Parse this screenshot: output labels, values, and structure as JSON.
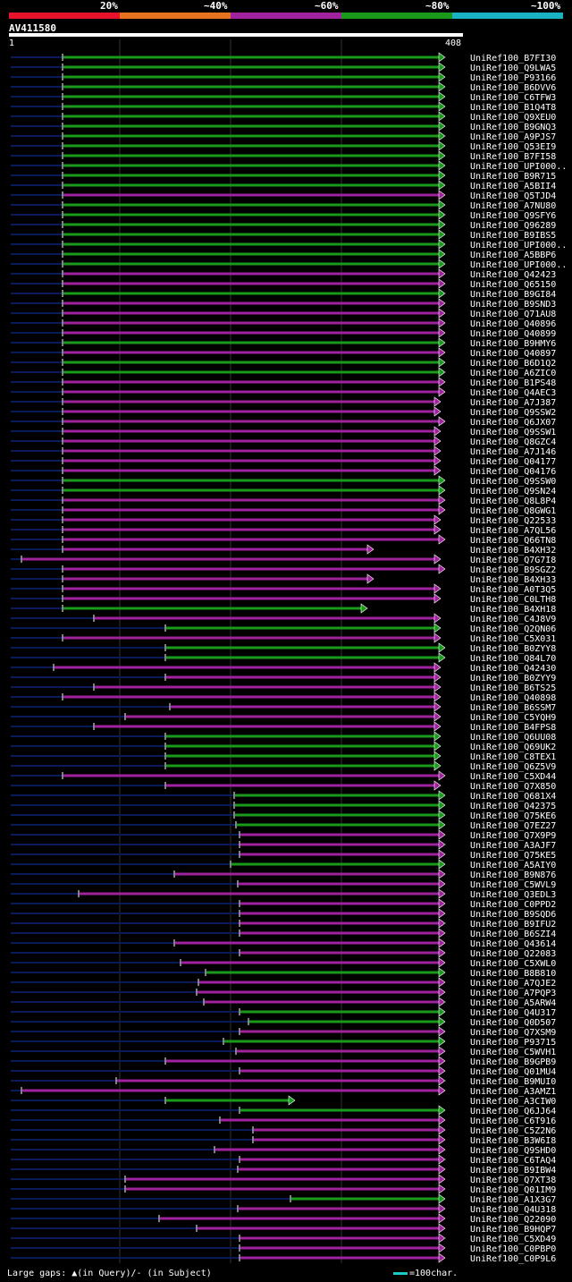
{
  "scale": {
    "marks": [
      "20%",
      "~40%",
      "~60%",
      "~80%",
      "~100%"
    ],
    "colors": [
      "#e8122d",
      "#e8731e",
      "#a0229e",
      "#1a9a1a",
      "#19b2c2"
    ]
  },
  "query": {
    "name": "AV411580",
    "start": "1",
    "end": "408"
  },
  "legend": {
    "gaps": "Large gaps: ▲(in Query)/- (in Subject)",
    "scale": "=100char."
  },
  "hits": [
    {
      "label": "UniRef100_B7FI30",
      "start": 70,
      "end": 498,
      "color": "green",
      "arrow": true
    },
    {
      "label": "UniRef100_Q9LWA5",
      "start": 70,
      "end": 498,
      "color": "green",
      "arrow": true
    },
    {
      "label": "UniRef100_P93166",
      "start": 70,
      "end": 498,
      "color": "green",
      "arrow": true
    },
    {
      "label": "UniRef100_B6DVV6",
      "start": 70,
      "end": 498,
      "color": "green",
      "arrow": true
    },
    {
      "label": "UniRef100_C6TFW3",
      "start": 70,
      "end": 498,
      "color": "green",
      "arrow": true
    },
    {
      "label": "UniRef100_B1Q4T8",
      "start": 70,
      "end": 498,
      "color": "green",
      "arrow": true
    },
    {
      "label": "UniRef100_Q9XEU0",
      "start": 70,
      "end": 498,
      "color": "green",
      "arrow": true
    },
    {
      "label": "UniRef100_B9GNQ3",
      "start": 70,
      "end": 498,
      "color": "green",
      "arrow": true
    },
    {
      "label": "UniRef100_A9PJS7",
      "start": 70,
      "end": 498,
      "color": "green",
      "arrow": true
    },
    {
      "label": "UniRef100_Q53EI9",
      "start": 70,
      "end": 498,
      "color": "green",
      "arrow": true
    },
    {
      "label": "UniRef100_B7FI58",
      "start": 70,
      "end": 498,
      "color": "green",
      "arrow": true
    },
    {
      "label": "UniRef100_UPI000..",
      "start": 70,
      "end": 498,
      "color": "green",
      "arrow": true
    },
    {
      "label": "UniRef100_B9R715",
      "start": 70,
      "end": 498,
      "color": "green",
      "arrow": true
    },
    {
      "label": "UniRef100_A5BII4",
      "start": 70,
      "end": 498,
      "color": "green",
      "arrow": true
    },
    {
      "label": "UniRef100_Q5TJD4",
      "start": 70,
      "end": 498,
      "color": "purple",
      "arrow": true
    },
    {
      "label": "UniRef100_A7NU80",
      "start": 70,
      "end": 498,
      "color": "green",
      "arrow": true
    },
    {
      "label": "UniRef100_Q9SFY6",
      "start": 70,
      "end": 498,
      "color": "green",
      "arrow": true
    },
    {
      "label": "UniRef100_Q96289",
      "start": 70,
      "end": 498,
      "color": "green",
      "arrow": true
    },
    {
      "label": "UniRef100_B9IBS5",
      "start": 70,
      "end": 498,
      "color": "green",
      "arrow": true
    },
    {
      "label": "UniRef100_UPI000..",
      "start": 70,
      "end": 498,
      "color": "green",
      "arrow": true
    },
    {
      "label": "UniRef100_A5BBP6",
      "start": 70,
      "end": 498,
      "color": "green",
      "arrow": true
    },
    {
      "label": "UniRef100_UPI000..",
      "start": 70,
      "end": 498,
      "color": "green",
      "arrow": true
    },
    {
      "label": "UniRef100_Q42423",
      "start": 70,
      "end": 498,
      "color": "purple",
      "arrow": true
    },
    {
      "label": "UniRef100_Q65150",
      "start": 70,
      "end": 498,
      "color": "purple",
      "arrow": true
    },
    {
      "label": "UniRef100_B9GI84",
      "start": 70,
      "end": 498,
      "color": "green",
      "arrow": true
    },
    {
      "label": "UniRef100_B9SND3",
      "start": 70,
      "end": 498,
      "color": "purple",
      "arrow": true
    },
    {
      "label": "UniRef100_Q71AU8",
      "start": 70,
      "end": 498,
      "color": "purple",
      "arrow": true
    },
    {
      "label": "UniRef100_Q40896",
      "start": 70,
      "end": 498,
      "color": "purple",
      "arrow": true
    },
    {
      "label": "UniRef100_Q40899",
      "start": 70,
      "end": 498,
      "color": "purple",
      "arrow": true
    },
    {
      "label": "UniRef100_B9HMY6",
      "start": 70,
      "end": 498,
      "color": "green",
      "arrow": true
    },
    {
      "label": "UniRef100_Q40897",
      "start": 70,
      "end": 498,
      "color": "purple",
      "arrow": true
    },
    {
      "label": "UniRef100_B6D1Q2",
      "start": 70,
      "end": 498,
      "color": "green",
      "arrow": true
    },
    {
      "label": "UniRef100_A6ZIC0",
      "start": 70,
      "end": 498,
      "color": "green",
      "arrow": true
    },
    {
      "label": "UniRef100_B1PS48",
      "start": 70,
      "end": 498,
      "color": "purple",
      "arrow": true
    },
    {
      "label": "UniRef100_Q4AEC3",
      "start": 70,
      "end": 498,
      "color": "purple",
      "arrow": true
    },
    {
      "label": "UniRef100_A7J387",
      "start": 70,
      "end": 493,
      "color": "purple",
      "arrow": true
    },
    {
      "label": "UniRef100_Q9SSW2",
      "start": 70,
      "end": 493,
      "color": "purple",
      "arrow": true
    },
    {
      "label": "UniRef100_Q6JX07",
      "start": 70,
      "end": 498,
      "color": "purple",
      "arrow": true
    },
    {
      "label": "UniRef100_Q9SSW1",
      "start": 70,
      "end": 493,
      "color": "purple",
      "arrow": true
    },
    {
      "label": "UniRef100_Q8GZC4",
      "start": 70,
      "end": 493,
      "color": "purple",
      "arrow": true
    },
    {
      "label": "UniRef100_A7J146",
      "start": 70,
      "end": 493,
      "color": "purple",
      "arrow": true
    },
    {
      "label": "UniRef100_Q04177",
      "start": 70,
      "end": 493,
      "color": "purple",
      "arrow": true
    },
    {
      "label": "UniRef100_Q04176",
      "start": 70,
      "end": 493,
      "color": "purple",
      "arrow": true
    },
    {
      "label": "UniRef100_Q9SSW0",
      "start": 70,
      "end": 498,
      "color": "green",
      "arrow": true
    },
    {
      "label": "UniRef100_Q9SN24",
      "start": 70,
      "end": 498,
      "color": "green",
      "arrow": true
    },
    {
      "label": "UniRef100_Q8L8P4",
      "start": 70,
      "end": 498,
      "color": "purple",
      "arrow": true
    },
    {
      "label": "UniRef100_Q8GWG1",
      "start": 70,
      "end": 498,
      "color": "purple",
      "arrow": true
    },
    {
      "label": "UniRef100_Q22533",
      "start": 70,
      "end": 493,
      "color": "purple",
      "arrow": true
    },
    {
      "label": "UniRef100_A7QL56",
      "start": 70,
      "end": 493,
      "color": "purple",
      "arrow": true
    },
    {
      "label": "UniRef100_Q66TN8",
      "start": 70,
      "end": 498,
      "color": "purple",
      "arrow": true
    },
    {
      "label": "UniRef100_B4XH32",
      "start": 70,
      "end": 418,
      "color": "purple",
      "arrow": true
    },
    {
      "label": "UniRef100_Q7G7I8",
      "start": 24,
      "end": 493,
      "color": "purple",
      "arrow": true
    },
    {
      "label": "UniRef100_B9SGZ2",
      "start": 70,
      "end": 498,
      "color": "purple",
      "arrow": true
    },
    {
      "label": "UniRef100_B4XH33",
      "start": 70,
      "end": 418,
      "color": "purple",
      "arrow": true
    },
    {
      "label": "UniRef100_A0T3Q5",
      "start": 70,
      "end": 493,
      "color": "purple",
      "arrow": true
    },
    {
      "label": "UniRef100_C0LTH8",
      "start": 70,
      "end": 493,
      "color": "purple",
      "arrow": true
    },
    {
      "label": "UniRef100_B4XH18",
      "start": 70,
      "end": 411,
      "color": "green",
      "arrow": true
    },
    {
      "label": "UniRef100_C4J8V9",
      "start": 105,
      "end": 493,
      "color": "purple",
      "arrow": true
    },
    {
      "label": "UniRef100_Q2QN06",
      "start": 185,
      "end": 493,
      "color": "green",
      "arrow": true
    },
    {
      "label": "UniRef100_C5X031",
      "start": 70,
      "end": 493,
      "color": "purple",
      "arrow": true
    },
    {
      "label": "UniRef100_B0ZYY8",
      "start": 185,
      "end": 498,
      "color": "green",
      "arrow": true
    },
    {
      "label": "UniRef100_Q84L70",
      "start": 185,
      "end": 498,
      "color": "green",
      "arrow": true
    },
    {
      "label": "UniRef100_Q42430",
      "start": 60,
      "end": 493,
      "color": "purple",
      "arrow": true
    },
    {
      "label": "UniRef100_B0ZYY9",
      "start": 185,
      "end": 493,
      "color": "purple",
      "arrow": true
    },
    {
      "label": "UniRef100_B6TS25",
      "start": 105,
      "end": 493,
      "color": "purple",
      "arrow": true
    },
    {
      "label": "UniRef100_Q40898",
      "start": 70,
      "end": 493,
      "color": "purple",
      "arrow": true
    },
    {
      "label": "UniRef100_B6SSM7",
      "start": 190,
      "end": 493,
      "color": "purple",
      "arrow": true
    },
    {
      "label": "UniRef100_C5YQH9",
      "start": 140,
      "end": 493,
      "color": "purple",
      "arrow": true
    },
    {
      "label": "UniRef100_B4FPS8",
      "start": 105,
      "end": 493,
      "color": "purple",
      "arrow": true
    },
    {
      "label": "UniRef100_Q6UU08",
      "start": 185,
      "end": 493,
      "color": "green",
      "arrow": true
    },
    {
      "label": "UniRef100_Q69UK2",
      "start": 185,
      "end": 493,
      "color": "green",
      "arrow": true
    },
    {
      "label": "UniRef100_C8TEX1",
      "start": 185,
      "end": 493,
      "color": "green",
      "arrow": true
    },
    {
      "label": "UniRef100_Q6Z5V9",
      "start": 185,
      "end": 493,
      "color": "green",
      "arrow": true
    },
    {
      "label": "UniRef100_C5XD44",
      "start": 70,
      "end": 498,
      "color": "purple",
      "arrow": true
    },
    {
      "label": "UniRef100_Q7X850",
      "start": 185,
      "end": 493,
      "color": "purple",
      "arrow": true
    },
    {
      "label": "UniRef100_Q681X4",
      "start": 262,
      "end": 498,
      "color": "green",
      "arrow": true
    },
    {
      "label": "UniRef100_Q42375",
      "start": 262,
      "end": 498,
      "color": "green",
      "arrow": true
    },
    {
      "label": "UniRef100_Q75KE6",
      "start": 262,
      "end": 498,
      "color": "green",
      "arrow": true
    },
    {
      "label": "UniRef100_Q7EZ27",
      "start": 264,
      "end": 498,
      "color": "green",
      "arrow": true
    },
    {
      "label": "UniRef100_Q7X9P9",
      "start": 268,
      "end": 498,
      "color": "purple",
      "arrow": true
    },
    {
      "label": "UniRef100_A3AJF7",
      "start": 268,
      "end": 498,
      "color": "purple",
      "arrow": true
    },
    {
      "label": "UniRef100_Q75KE5",
      "start": 268,
      "end": 498,
      "color": "purple",
      "arrow": true
    },
    {
      "label": "UniRef100_A5AIY0",
      "start": 258,
      "end": 498,
      "color": "green",
      "arrow": true
    },
    {
      "label": "UniRef100_B9N876",
      "start": 195,
      "end": 498,
      "color": "purple",
      "arrow": true
    },
    {
      "label": "UniRef100_C5WVL9",
      "start": 266,
      "end": 498,
      "color": "purple",
      "arrow": true
    },
    {
      "label": "UniRef100_Q3EDL3",
      "start": 88,
      "end": 498,
      "color": "purple",
      "arrow": true
    },
    {
      "label": "UniRef100_C0PPD2",
      "start": 268,
      "end": 498,
      "color": "purple",
      "arrow": true
    },
    {
      "label": "UniRef100_B9SQD6",
      "start": 268,
      "end": 498,
      "color": "purple",
      "arrow": true
    },
    {
      "label": "UniRef100_B9IFU2",
      "start": 268,
      "end": 498,
      "color": "purple",
      "arrow": true
    },
    {
      "label": "UniRef100_B6SZI4",
      "start": 268,
      "end": 498,
      "color": "purple",
      "arrow": true
    },
    {
      "label": "UniRef100_Q43614",
      "start": 195,
      "end": 498,
      "color": "purple",
      "arrow": true
    },
    {
      "label": "UniRef100_Q22083",
      "start": 268,
      "end": 498,
      "color": "purple",
      "arrow": true
    },
    {
      "label": "UniRef100_C5XWL0",
      "start": 202,
      "end": 498,
      "color": "purple",
      "arrow": true
    },
    {
      "label": "UniRef100_B8B810",
      "start": 230,
      "end": 498,
      "color": "green",
      "arrow": true
    },
    {
      "label": "UniRef100_A7QJE2",
      "start": 222,
      "end": 498,
      "color": "purple",
      "arrow": true
    },
    {
      "label": "UniRef100_A7PQP3",
      "start": 220,
      "end": 498,
      "color": "purple",
      "arrow": true
    },
    {
      "label": "UniRef100_A5ARW4",
      "start": 228,
      "end": 498,
      "color": "purple",
      "arrow": true
    },
    {
      "label": "UniRef100_Q4U317",
      "start": 268,
      "end": 498,
      "color": "green",
      "arrow": true
    },
    {
      "label": "UniRef100_Q0D507",
      "start": 278,
      "end": 498,
      "color": "green",
      "arrow": true
    },
    {
      "label": "UniRef100_Q7XSM9",
      "start": 268,
      "end": 498,
      "color": "purple",
      "arrow": true
    },
    {
      "label": "UniRef100_P93715",
      "start": 250,
      "end": 498,
      "color": "green",
      "arrow": true
    },
    {
      "label": "UniRef100_C5WVH1",
      "start": 264,
      "end": 498,
      "color": "purple",
      "arrow": true
    },
    {
      "label": "UniRef100_B9GPB9",
      "start": 185,
      "end": 498,
      "color": "purple",
      "arrow": true
    },
    {
      "label": "UniRef100_Q01MU4",
      "start": 268,
      "end": 498,
      "color": "purple",
      "arrow": true
    },
    {
      "label": "UniRef100_B9MUI0",
      "start": 130,
      "end": 498,
      "color": "purple",
      "arrow": true
    },
    {
      "label": "UniRef100_A3AMZ1",
      "start": 24,
      "end": 498,
      "color": "purple",
      "arrow": true
    },
    {
      "label": "UniRef100_A3CIW0",
      "start": 185,
      "end": 330,
      "color": "green",
      "arrow": true
    },
    {
      "label": "UniRef100_Q6JJ64",
      "start": 268,
      "end": 498,
      "color": "green",
      "arrow": true
    },
    {
      "label": "UniRef100_C6T916",
      "start": 246,
      "end": 498,
      "color": "purple",
      "arrow": true
    },
    {
      "label": "UniRef100_C5Z2N6",
      "start": 283,
      "end": 498,
      "color": "purple",
      "arrow": true
    },
    {
      "label": "UniRef100_B3W6I8",
      "start": 283,
      "end": 498,
      "color": "purple",
      "arrow": true
    },
    {
      "label": "UniRef100_Q9SHD0",
      "start": 240,
      "end": 498,
      "color": "purple",
      "arrow": true
    },
    {
      "label": "UniRef100_C6TAQ4",
      "start": 268,
      "end": 498,
      "color": "purple",
      "arrow": true
    },
    {
      "label": "UniRef100_B9IBW4",
      "start": 266,
      "end": 498,
      "color": "purple",
      "arrow": true
    },
    {
      "label": "UniRef100_Q7XT38",
      "start": 140,
      "end": 498,
      "color": "purple",
      "arrow": true
    },
    {
      "label": "UniRef100_Q01IM9",
      "start": 140,
      "end": 498,
      "color": "purple",
      "arrow": true
    },
    {
      "label": "UniRef100_A1X3G7",
      "start": 325,
      "end": 498,
      "color": "green",
      "arrow": true
    },
    {
      "label": "UniRef100_Q4U318",
      "start": 266,
      "end": 498,
      "color": "purple",
      "arrow": true
    },
    {
      "label": "UniRef100_Q22090",
      "start": 178,
      "end": 498,
      "color": "purple",
      "arrow": true
    },
    {
      "label": "UniRef100_B9HQP7",
      "start": 220,
      "end": 498,
      "color": "purple",
      "arrow": true
    },
    {
      "label": "UniRef100_C5XD49",
      "start": 268,
      "end": 498,
      "color": "purple",
      "arrow": true
    },
    {
      "label": "UniRef100_C0PBP0",
      "start": 268,
      "end": 498,
      "color": "purple",
      "arrow": true
    },
    {
      "label": "UniRef100_C0P9L6",
      "start": 268,
      "end": 498,
      "color": "purple",
      "arrow": true
    }
  ]
}
